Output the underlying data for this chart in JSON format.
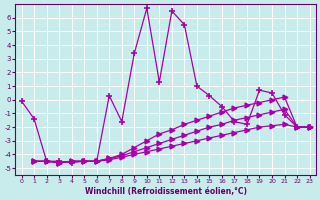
{
  "xlabel": "Windchill (Refroidissement éolien,°C)",
  "bg_color": "#c8ecec",
  "grid_color": "#ffffff",
  "line_color": "#aa00aa",
  "xlim": [
    -0.5,
    23.5
  ],
  "ylim": [
    -5.5,
    7.0
  ],
  "yticks": [
    -5,
    -4,
    -3,
    -2,
    -1,
    0,
    1,
    2,
    3,
    4,
    5,
    6
  ],
  "xticks": [
    0,
    1,
    2,
    3,
    4,
    5,
    6,
    7,
    8,
    9,
    10,
    11,
    12,
    13,
    14,
    15,
    16,
    17,
    18,
    19,
    20,
    21,
    22,
    23
  ],
  "lines": [
    {
      "x": [
        0,
        1,
        2,
        3,
        4,
        5,
        6,
        7,
        8,
        9,
        10,
        11,
        12,
        13,
        14,
        15,
        16,
        17,
        18,
        19,
        20,
        21,
        22,
        23
      ],
      "y": [
        -0.1,
        -1.4,
        -4.5,
        -4.5,
        -4.6,
        -4.5,
        -4.5,
        0.3,
        -1.6,
        3.4,
        6.7,
        1.3,
        6.5,
        5.5,
        1.0,
        0.3,
        -0.5,
        -1.6,
        -1.8,
        0.7,
        0.5,
        -1.1,
        -2.0,
        -2.0
      ],
      "marker": "+"
    },
    {
      "x": [
        1,
        2,
        3,
        4,
        5,
        6,
        7,
        8,
        9,
        10,
        11,
        12,
        13,
        14,
        15,
        16,
        17,
        18,
        19,
        20,
        21,
        22,
        23
      ],
      "y": [
        -4.5,
        -4.5,
        -4.6,
        -4.5,
        -4.5,
        -4.5,
        -4.3,
        -4.0,
        -3.5,
        -3.0,
        -2.5,
        -2.2,
        -1.8,
        -1.5,
        -1.2,
        -0.9,
        -0.6,
        -0.4,
        -0.2,
        0.0,
        0.2,
        -2.0,
        -2.0
      ],
      "marker": ">"
    },
    {
      "x": [
        1,
        2,
        3,
        4,
        5,
        6,
        7,
        8,
        9,
        10,
        11,
        12,
        13,
        14,
        15,
        16,
        17,
        18,
        19,
        20,
        21,
        22,
        23
      ],
      "y": [
        -4.5,
        -4.5,
        -4.6,
        -4.5,
        -4.5,
        -4.5,
        -4.3,
        -4.1,
        -3.8,
        -3.5,
        -3.2,
        -2.9,
        -2.6,
        -2.3,
        -2.0,
        -1.8,
        -1.5,
        -1.3,
        -1.1,
        -0.9,
        -0.7,
        -2.0,
        -2.0
      ],
      "marker": ">"
    },
    {
      "x": [
        1,
        2,
        3,
        4,
        5,
        6,
        7,
        8,
        9,
        10,
        11,
        12,
        13,
        14,
        15,
        16,
        17,
        18,
        19,
        20,
        21,
        22,
        23
      ],
      "y": [
        -4.5,
        -4.5,
        -4.6,
        -4.5,
        -4.5,
        -4.5,
        -4.4,
        -4.2,
        -4.0,
        -3.8,
        -3.6,
        -3.4,
        -3.2,
        -3.0,
        -2.8,
        -2.6,
        -2.4,
        -2.2,
        -2.0,
        -1.9,
        -1.8,
        -2.0,
        -2.0
      ],
      "marker": ">"
    }
  ]
}
